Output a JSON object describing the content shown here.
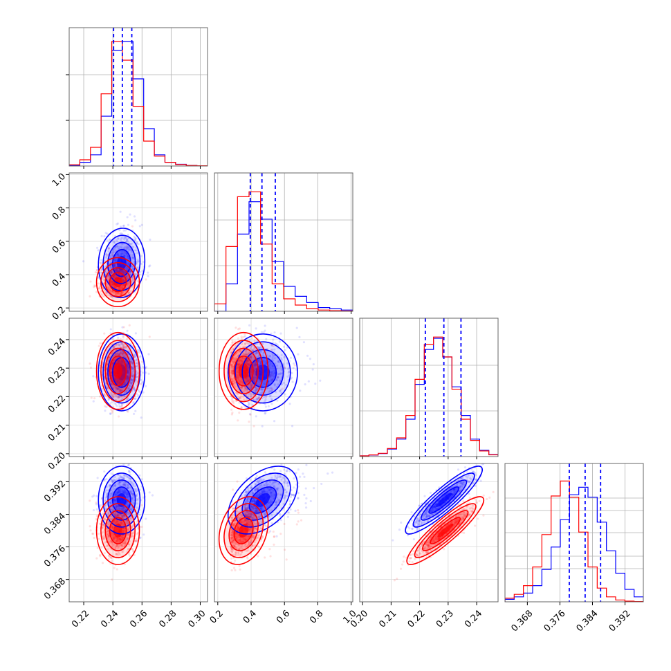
{
  "chart_data": {
    "type": "corner",
    "title": "",
    "colors": {
      "series_a": "#0000ff",
      "series_b": "#ff0000",
      "grid": "#b0b0b0",
      "frame": "#666666"
    },
    "parameters": [
      {
        "range": [
          0.21,
          0.305
        ],
        "ticks": [
          0.22,
          0.24,
          0.26,
          0.28,
          0.3
        ],
        "tick_labels": [
          "0.22",
          "0.24",
          "0.26",
          "0.28",
          "0.30"
        ],
        "quantiles_a": [
          0.2405,
          0.2465,
          0.253
        ]
      },
      {
        "range": [
          0.18,
          1.01
        ],
        "ticks": [
          0.2,
          0.4,
          0.6,
          0.8,
          1.0
        ],
        "tick_labels": [
          "0.2",
          "0.4",
          "0.6",
          "0.8",
          "1.0"
        ],
        "quantiles_a": [
          0.395,
          0.465,
          0.545
        ]
      },
      {
        "range": [
          0.199,
          0.2475
        ],
        "ticks": [
          0.2,
          0.21,
          0.22,
          0.23,
          0.24
        ],
        "tick_labels": [
          "0.20",
          "0.21",
          "0.22",
          "0.23",
          "0.24"
        ],
        "quantiles_a": [
          0.222,
          0.2285,
          0.2345
        ]
      },
      {
        "range": [
          0.3625,
          0.3965
        ],
        "ticks": [
          0.368,
          0.376,
          0.384,
          0.392
        ],
        "tick_labels": [
          "0.368",
          "0.376",
          "0.384",
          "0.392"
        ],
        "quantiles_a": [
          0.3783,
          0.3822,
          0.386
        ]
      }
    ],
    "series": [
      {
        "color": "#0000ff",
        "mean": [
          0.246,
          0.47,
          0.2285,
          0.3875
        ],
        "sd": [
          0.0065,
          0.085,
          0.0055,
          0.0034
        ],
        "corr": [
          [
            1,
            0.05,
            0.0,
            0.0
          ],
          [
            0.05,
            1,
            0.0,
            0.45
          ],
          [
            0.0,
            0.0,
            1,
            0.9
          ],
          [
            0.0,
            0.45,
            0.9,
            1
          ]
        ],
        "hist": [
          [
            0.6,
            3,
            9,
            40,
            93,
            100,
            70,
            30,
            9,
            3,
            1.4,
            0.5,
            0.2
          ],
          [
            0,
            22,
            62,
            88,
            74,
            40,
            20,
            12,
            7,
            3,
            2,
            1
          ],
          [
            0.6,
            1.2,
            2.4,
            6,
            14,
            30,
            58,
            86,
            95,
            80,
            56,
            33,
            14,
            5,
            1.6
          ],
          [
            2,
            4,
            7,
            13,
            26,
            44,
            66,
            86,
            92,
            84,
            64,
            41,
            23,
            10,
            4
          ]
        ]
      },
      {
        "color": "#ff0000",
        "mean": [
          0.2435,
          0.355,
          0.229,
          0.38
        ],
        "sd": [
          0.006,
          0.06,
          0.0055,
          0.0034
        ],
        "corr": [
          [
            1,
            0.0,
            0.0,
            0.0
          ],
          [
            0.0,
            1,
            0.0,
            0.25
          ],
          [
            0.0,
            0.0,
            1,
            0.9
          ],
          [
            0.0,
            0.25,
            0.9,
            1
          ]
        ],
        "hist": [
          [
            1,
            5,
            15,
            58,
            100,
            85,
            48,
            20,
            8,
            3,
            1.2,
            0.4,
            0.2
          ],
          [
            6,
            52,
            92,
            96,
            54,
            22,
            10,
            5,
            2,
            1,
            0.5,
            0.3
          ],
          [
            0.6,
            1.3,
            2.6,
            6.5,
            15,
            33,
            62,
            90,
            96,
            80,
            54,
            30,
            13,
            4.5,
            1.4
          ],
          [
            3,
            6,
            13,
            28,
            54,
            85,
            97,
            84,
            56,
            28,
            11,
            4,
            1.5,
            0.6,
            0.2
          ]
        ]
      }
    ]
  }
}
